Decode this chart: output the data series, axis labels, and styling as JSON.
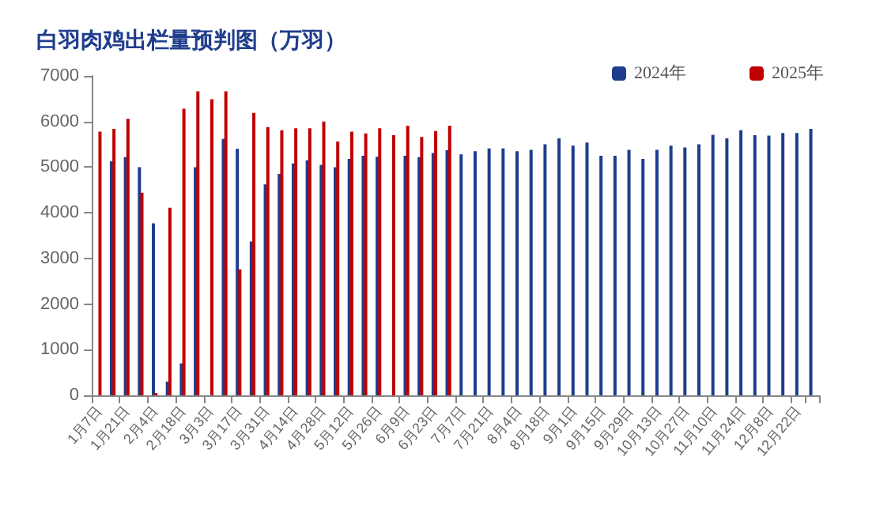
{
  "chart_data": {
    "type": "bar",
    "title": "白羽肉鸡出栏量预判图（万羽）",
    "categories": [
      "1月7日",
      null,
      "1月21日",
      null,
      "2月4日",
      null,
      "2月18日",
      null,
      "3月3日",
      null,
      "3月17日",
      null,
      "3月31日",
      null,
      "4月14日",
      null,
      "4月28日",
      null,
      "5月12日",
      null,
      "5月26日",
      null,
      "6月9日",
      null,
      "6月23日",
      null,
      "7月7日",
      null,
      "7月21日",
      null,
      "8月4日",
      null,
      "8月18日",
      null,
      "9月1日",
      null,
      "9月15日",
      null,
      "9月29日",
      null,
      "10月13日",
      null,
      "10月27日",
      null,
      "11月10日",
      null,
      "11月24日",
      null,
      "12月8日",
      null,
      "12月22日",
      null
    ],
    "series": [
      {
        "name": "2024年",
        "color": "#1f3d8c",
        "values": [
          null,
          5130,
          5220,
          5000,
          3770,
          300,
          700,
          5000,
          null,
          5620,
          5400,
          3370,
          4620,
          4850,
          5080,
          5150,
          5050,
          5000,
          5180,
          5250,
          5230,
          null,
          5250,
          5220,
          5310,
          5370,
          5280,
          5350,
          5410,
          5410,
          5350,
          5380,
          5500,
          5630,
          5470,
          5540,
          5250,
          5250,
          5380,
          5180,
          5380,
          5470,
          5430,
          5500,
          5710,
          5630,
          5810,
          5700,
          5690,
          5750,
          5750,
          5840
        ]
      },
      {
        "name": "2025年",
        "color": "#c00000",
        "values": [
          5780,
          5840,
          6060,
          4440,
          50,
          4110,
          6280,
          6660,
          6490,
          6660,
          2760,
          6190,
          5880,
          5810,
          5850,
          5850,
          6000,
          5560,
          5780,
          5740,
          5850,
          5700,
          5910,
          5660,
          5790,
          5910,
          null,
          null,
          null,
          null,
          null,
          null,
          null,
          null,
          null,
          null,
          null,
          null,
          null,
          null,
          null,
          null,
          null,
          null,
          null,
          null,
          null,
          null,
          null,
          null,
          null,
          null
        ]
      }
    ],
    "ylim": [
      0,
      7000
    ],
    "yticks": [
      0,
      1000,
      2000,
      3000,
      4000,
      5000,
      6000,
      7000
    ],
    "grid": false,
    "legend": "top right"
  }
}
